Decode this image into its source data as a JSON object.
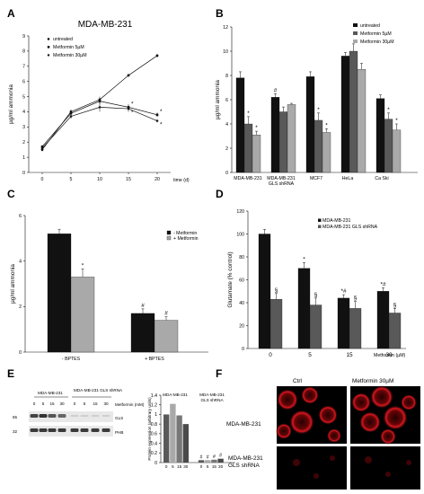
{
  "panel_letters": [
    "A",
    "B",
    "C",
    "D",
    "E",
    "F"
  ],
  "colors": {
    "black": "#111111",
    "dark_grey": "#595959",
    "light_grey": "#a9a9a9",
    "micro_red": "#d4101a"
  },
  "chart_data": [
    {
      "panel": "A",
      "type": "line",
      "title": "MDA-MB-231",
      "xlabel": "time (d)",
      "ylabel": "µg/ml ammonia",
      "x": [
        0,
        5,
        10,
        15,
        20
      ],
      "xticks": [
        "0",
        "5",
        "10",
        "15",
        "20"
      ],
      "yticks": [
        "0",
        "1",
        "2",
        "3",
        "4",
        "5",
        "6",
        "7",
        "8",
        "9"
      ],
      "ylim": [
        0,
        9
      ],
      "series": [
        {
          "name": "untreated",
          "values": [
            1.5,
            4.0,
            4.8,
            6.4,
            7.7
          ],
          "errors": [
            0.1,
            0.15,
            0.2,
            0.1,
            0.1
          ]
        },
        {
          "name": "Metformin 5µM",
          "values": [
            1.7,
            3.9,
            4.7,
            4.3,
            3.8
          ],
          "errors": [
            0.1,
            0.15,
            0.2,
            0.2,
            0.15
          ]
        },
        {
          "name": "Metformin 30µM",
          "values": [
            1.6,
            3.7,
            4.3,
            4.2,
            3.4
          ],
          "errors": [
            0.1,
            0.15,
            0.3,
            0.2,
            0.1
          ]
        }
      ],
      "annotations": [
        {
          "x": 15,
          "series": "Metformin 5µM",
          "text": "*"
        },
        {
          "x": 15,
          "series": "Metformin 30µM",
          "text": "*"
        },
        {
          "x": 20,
          "series": "Metformin 5µM",
          "text": "*"
        },
        {
          "x": 20,
          "series": "Metformin 30µM",
          "text": "*"
        }
      ],
      "legend_position": "top-left"
    },
    {
      "panel": "B",
      "type": "bar",
      "ylabel": "µg/ml ammonia",
      "ylim": [
        0,
        12
      ],
      "yticks": [
        "0",
        "2",
        "4",
        "6",
        "8",
        "10",
        "12"
      ],
      "categories": [
        "MDA-MB-231",
        "MDA-MB-231 GLS shRNA",
        "MCF7",
        "HeLa",
        "Ca Ski"
      ],
      "series": [
        {
          "name": "untreated",
          "values": [
            7.8,
            6.2,
            7.9,
            9.6,
            6.1
          ],
          "errors": [
            0.5,
            0.3,
            0.4,
            0.3,
            0.3
          ]
        },
        {
          "name": "Metformin 5µM",
          "values": [
            4.0,
            5.0,
            4.3,
            10.0,
            4.4
          ],
          "errors": [
            0.6,
            0.4,
            0.6,
            0.6,
            0.5
          ]
        },
        {
          "name": "Metformin 30µM",
          "values": [
            3.1,
            5.6,
            3.3,
            8.5,
            3.5
          ],
          "errors": [
            0.3,
            0.1,
            0.3,
            0.5,
            0.5
          ]
        }
      ],
      "annotations": [
        {
          "category": 0,
          "series": 1,
          "text": "*"
        },
        {
          "category": 0,
          "series": 2,
          "text": "*"
        },
        {
          "category": 1,
          "series": 0,
          "text": "#"
        },
        {
          "category": 2,
          "series": 1,
          "text": "*"
        },
        {
          "category": 2,
          "series": 2,
          "text": "*"
        },
        {
          "category": 4,
          "series": 1,
          "text": "*"
        },
        {
          "category": 4,
          "series": 2,
          "text": "*"
        }
      ],
      "legend_position": "top-right"
    },
    {
      "panel": "C",
      "type": "bar",
      "ylabel": "µg/ml ammonia",
      "ylim": [
        0,
        6
      ],
      "yticks": [
        "0",
        "2",
        "4",
        "6"
      ],
      "categories": [
        "- BPTES",
        "+ BPTES"
      ],
      "series": [
        {
          "name": "- Metformin",
          "values": [
            5.2,
            1.7
          ],
          "errors": [
            0.2,
            0.2
          ]
        },
        {
          "name": "+ Metformin",
          "values": [
            3.3,
            1.4
          ],
          "errors": [
            0.35,
            0.15
          ]
        }
      ],
      "annotations": [
        {
          "category": 0,
          "series": 1,
          "text": "*"
        },
        {
          "category": 1,
          "series": 0,
          "text": "#"
        },
        {
          "category": 1,
          "series": 1,
          "text": "#"
        }
      ],
      "legend_position": "top-right"
    },
    {
      "panel": "D",
      "type": "bar",
      "ylabel": "Glutamate (% control)",
      "xlabel": "Metformin (µM)",
      "ylim": [
        0,
        120
      ],
      "yticks": [
        "0",
        "20",
        "40",
        "60",
        "80",
        "100",
        "120"
      ],
      "categories": [
        "0",
        "5",
        "15",
        "30"
      ],
      "series": [
        {
          "name": "MDA-MB-231",
          "values": [
            100,
            70,
            44,
            50
          ],
          "errors": [
            4,
            5,
            3,
            3
          ]
        },
        {
          "name": "MDA-MB-231 GLS shRNA",
          "values": [
            43,
            38,
            35,
            31
          ],
          "errors": [
            5,
            6,
            6,
            4
          ]
        }
      ],
      "annotations": [
        {
          "category": 0,
          "series": 1,
          "text": "§"
        },
        {
          "category": 1,
          "series": 0,
          "text": "*"
        },
        {
          "category": 1,
          "series": 1,
          "text": "§"
        },
        {
          "category": 2,
          "series": 0,
          "text": "*#"
        },
        {
          "category": 2,
          "series": 1,
          "text": "§"
        },
        {
          "category": 3,
          "series": 0,
          "text": "*#"
        },
        {
          "category": 3,
          "series": 1,
          "text": "§"
        }
      ],
      "legend_position": "top-right"
    },
    {
      "panel": "E",
      "type": "bar",
      "ylabel": "Protein expression (arbitrary units)",
      "ylim": [
        0,
        1.4
      ],
      "yticks": [
        "0",
        "0.2",
        "0.4",
        "0.6",
        "0.8",
        "1",
        "1.2",
        "1.4"
      ],
      "groups": [
        "MDA-MB-231",
        "MDA-MB-231 GLS shRNA"
      ],
      "categories": [
        "0",
        "5",
        "15",
        "30",
        "0",
        "5",
        "15",
        "30"
      ],
      "values": [
        1.0,
        1.22,
        0.98,
        0.8,
        0.05,
        0.05,
        0.06,
        0.08
      ],
      "annotations": [
        {
          "index": 4,
          "text": "#"
        },
        {
          "index": 5,
          "text": "#"
        },
        {
          "index": 6,
          "text": "#"
        },
        {
          "index": 7,
          "text": "#"
        }
      ]
    }
  ],
  "blot": {
    "group_labels": [
      "MDA-MB-231",
      "MDA-MB-231 GLS shRNA"
    ],
    "lane_labels": [
      "0",
      "5",
      "15",
      "30",
      "0",
      "5",
      "15",
      "30"
    ],
    "treatment_label": "Metformin (mM)",
    "row_labels": [
      "GLS",
      "PHB"
    ],
    "markers": [
      "65",
      "32"
    ]
  },
  "micrograph": {
    "col_labels": [
      "Ctrl",
      "Metformin 30µM"
    ],
    "row_labels": [
      "MDA-MB-231",
      "MDA-MB-231 GLS shRNA"
    ]
  }
}
